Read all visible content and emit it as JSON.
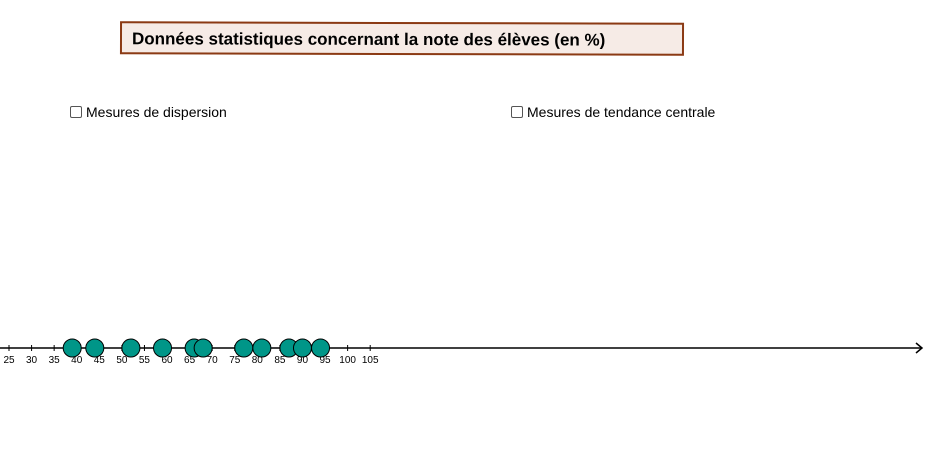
{
  "title": "Données statistiques concernant la note des élèves (en %)",
  "checkboxes": {
    "dispersion_label": "Mesures de dispersion",
    "central_label": "Mesures de tendance centrale",
    "dispersion_checked": false,
    "central_checked": false
  },
  "chart_data": {
    "type": "scatter",
    "xlim": [
      24,
      106
    ],
    "ticks": [
      25,
      30,
      35,
      40,
      45,
      50,
      55,
      60,
      65,
      70,
      75,
      80,
      85,
      90,
      95,
      100,
      105
    ],
    "points": [
      39,
      44,
      52,
      59,
      66,
      68,
      77,
      81,
      87,
      90,
      94
    ],
    "point_color": "#009688",
    "point_stroke": "#000000",
    "axis_color": "#000000"
  }
}
